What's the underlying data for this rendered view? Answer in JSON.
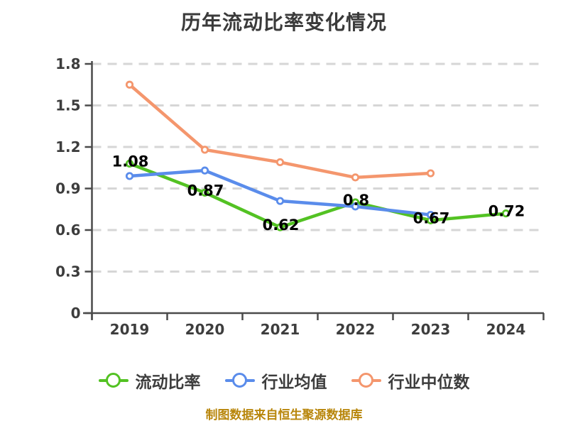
{
  "page": {
    "background": "#ffffff"
  },
  "chart_data": {
    "type": "line",
    "title": "历年流动比率变化情况",
    "categories": [
      "2019",
      "2020",
      "2021",
      "2022",
      "2023",
      "2024"
    ],
    "series": [
      {
        "name": "流动比率",
        "color": "#53c223",
        "values": [
          1.08,
          0.87,
          0.62,
          0.8,
          0.67,
          0.72
        ],
        "point_labels": [
          "1.08",
          "0.87",
          "0.62",
          "0.8",
          "0.67",
          "0.72"
        ]
      },
      {
        "name": "行业均值",
        "color": "#5a8ceb",
        "values": [
          0.99,
          1.03,
          0.81,
          0.77,
          0.71,
          null
        ],
        "point_labels": []
      },
      {
        "name": "行业中位数",
        "color": "#f4966d",
        "values": [
          1.65,
          1.18,
          1.09,
          0.98,
          1.01,
          null
        ],
        "point_labels": []
      }
    ],
    "xlabel": "",
    "ylabel": "",
    "ylim": [
      0,
      1.8
    ],
    "yticks": [
      0,
      0.3,
      0.6,
      0.9,
      1.2,
      1.5,
      1.8
    ],
    "ytick_labels": [
      "0",
      "0.3",
      "0.6",
      "0.9",
      "1.2",
      "1.5",
      "1.8"
    ],
    "grid": "horizontal-dashed",
    "legend_position": "bottom",
    "marker_style": "white-filled-circle"
  },
  "footer": {
    "note": "制图数据来自恒生聚源数据库",
    "color": "#b8860b"
  },
  "colors": {
    "title": "#3a3a3a",
    "tick_label": "#3d3d3d",
    "data_label": "#000000",
    "gridline": "#d6d6d6",
    "axis": "#4a4a4a"
  }
}
